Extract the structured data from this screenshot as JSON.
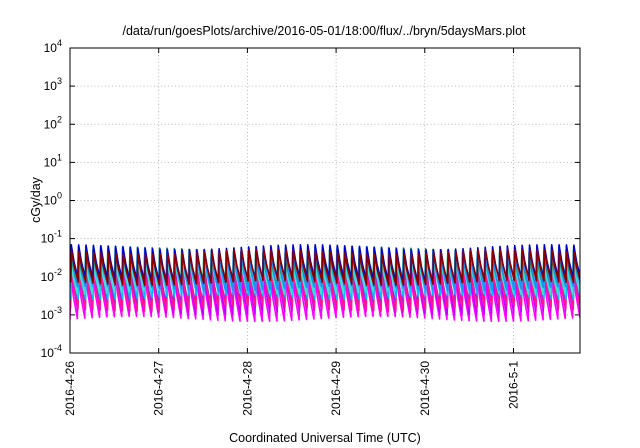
{
  "chart_data": {
    "type": "line",
    "title": "/data/run/goesPlots/archive/2016-05-01/18:00/flux/../bryn/5daysMars.plot",
    "xlabel": "Coordinated Universal Time (UTC)",
    "ylabel": "cGy/day",
    "yscale": "log",
    "ylim": [
      0.0001,
      10000
    ],
    "y_ticks": [
      {
        "base": "10",
        "exp": "-4",
        "value": 0.0001
      },
      {
        "base": "10",
        "exp": "-3",
        "value": 0.001
      },
      {
        "base": "10",
        "exp": "-2",
        "value": 0.01
      },
      {
        "base": "10",
        "exp": "-1",
        "value": 0.1
      },
      {
        "base": "10",
        "exp": "0",
        "value": 1
      },
      {
        "base": "10",
        "exp": "1",
        "value": 10
      },
      {
        "base": "10",
        "exp": "2",
        "value": 100
      },
      {
        "base": "10",
        "exp": "3",
        "value": 1000
      },
      {
        "base": "10",
        "exp": "4",
        "value": 10000
      }
    ],
    "xlim": [
      "2016-04-26T00:00",
      "2016-05-01T18:00"
    ],
    "x_ticks": [
      "2016-4-26",
      "2016-4-27",
      "2016-4-28",
      "2016-4-29",
      "2016-4-30",
      "2016-5-1"
    ],
    "grid": true,
    "pulses_per_day": 12,
    "series": [
      {
        "color": "#ff00ff",
        "peak": 0.012,
        "trough": 0.0008
      },
      {
        "color": "#c000ff",
        "peak": 0.018,
        "trough": 0.0012
      },
      {
        "color": "#8a2be2",
        "peak": 0.025,
        "trough": 0.002
      },
      {
        "color": "#ff1493",
        "peak": 0.014,
        "trough": 0.0015
      },
      {
        "color": "#00bfff",
        "peak": 0.04,
        "trough": 0.003
      },
      {
        "color": "#40e0d0",
        "peak": 0.03,
        "trough": 0.004
      },
      {
        "color": "#228b22",
        "peak": 0.05,
        "trough": 0.006
      },
      {
        "color": "#1e90ff",
        "peak": 0.055,
        "trough": 0.005
      },
      {
        "color": "#0000cd",
        "peak": 0.06,
        "trough": 0.008
      },
      {
        "color": "#8b0000",
        "peak": 0.045,
        "trough": 0.007
      }
    ]
  }
}
